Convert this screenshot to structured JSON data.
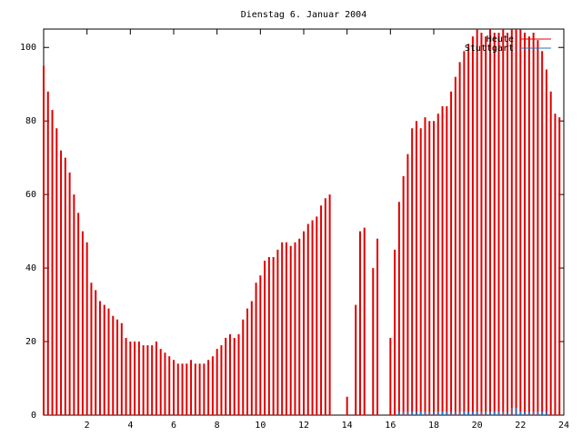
{
  "chart_data": {
    "type": "impulse",
    "title": "Dienstag 6. Januar 2004",
    "x": [
      0,
      0.2,
      0.4,
      0.6,
      0.8,
      1,
      1.2,
      1.4,
      1.6,
      1.8,
      2,
      2.2,
      2.4,
      2.6,
      2.8,
      3,
      3.2,
      3.4,
      3.6,
      3.8,
      4,
      4.2,
      4.4,
      4.6,
      4.8,
      5,
      5.2,
      5.4,
      5.6,
      5.8,
      6,
      6.2,
      6.4,
      6.6,
      6.8,
      7,
      7.2,
      7.4,
      7.6,
      7.8,
      8,
      8.2,
      8.4,
      8.6,
      8.8,
      9,
      9.2,
      9.4,
      9.6,
      9.8,
      10,
      10.2,
      10.4,
      10.6,
      10.8,
      11,
      11.2,
      11.4,
      11.6,
      11.8,
      12,
      12.2,
      12.4,
      12.6,
      12.8,
      13,
      13.2,
      13.4,
      13.6,
      13.8,
      14,
      14.2,
      14.4,
      14.6,
      14.8,
      15,
      15.2,
      15.4,
      15.6,
      15.8,
      16,
      16.2,
      16.4,
      16.6,
      16.8,
      17,
      17.2,
      17.4,
      17.6,
      17.8,
      18,
      18.2,
      18.4,
      18.6,
      18.8,
      19,
      19.2,
      19.4,
      19.6,
      19.8,
      20,
      20.2,
      20.4,
      20.6,
      20.8,
      21,
      21.2,
      21.4,
      21.6,
      21.8,
      22,
      22.2,
      22.4,
      22.6,
      22.8,
      23,
      23.2,
      23.4,
      23.6,
      23.8
    ],
    "series": [
      {
        "name": "Heute",
        "color": "#e00000",
        "values": [
          95,
          88,
          83,
          78,
          72,
          70,
          66,
          60,
          55,
          50,
          47,
          36,
          34,
          31,
          30,
          29,
          27,
          26,
          25,
          21,
          20,
          20,
          20,
          19,
          19,
          19,
          20,
          18,
          17,
          16,
          15,
          14,
          14,
          14,
          15,
          14,
          14,
          14,
          15,
          16,
          18,
          19,
          21,
          22,
          21,
          22,
          26,
          29,
          31,
          36,
          38,
          42,
          43,
          43,
          45,
          47,
          47,
          46,
          47,
          48,
          50,
          52,
          53,
          54,
          57,
          59,
          60,
          0,
          0,
          0,
          5,
          0,
          30,
          50,
          51,
          0,
          40,
          48,
          0,
          0,
          21,
          45,
          58,
          65,
          71,
          78,
          80,
          78,
          81,
          80,
          80,
          82,
          84,
          84,
          88,
          92,
          96,
          99,
          101,
          103,
          105,
          104,
          103,
          105,
          104,
          104,
          105,
          104,
          105,
          105,
          105,
          104,
          103,
          104,
          102,
          99,
          94,
          88,
          82,
          81
        ]
      },
      {
        "name": "Stuttgart",
        "color": "#1e78c8",
        "values": [
          0,
          0,
          0,
          0,
          0,
          0,
          0,
          0,
          0,
          0,
          0,
          0,
          0,
          0,
          0,
          0,
          0,
          0,
          0,
          0,
          0,
          0,
          0,
          0,
          0,
          0,
          0,
          0,
          0,
          0,
          0,
          0,
          0,
          0,
          0,
          0,
          0,
          0,
          0,
          0,
          0,
          0,
          0,
          0,
          0,
          0,
          0,
          0,
          0,
          0,
          0,
          0,
          0,
          0,
          0,
          0,
          0,
          0,
          0,
          0,
          0,
          0,
          0,
          0,
          0,
          0,
          0,
          0,
          0,
          0,
          0,
          0,
          0,
          0,
          0,
          0,
          0,
          0,
          0,
          0,
          0,
          0,
          1,
          1,
          1,
          1,
          1,
          1,
          1,
          1,
          1,
          1,
          1,
          1,
          1,
          1,
          1,
          1,
          1,
          1,
          1,
          1,
          1,
          1,
          1,
          1,
          1,
          1,
          2,
          2,
          1,
          1,
          1,
          1,
          1,
          1,
          1,
          0,
          0,
          0
        ]
      }
    ],
    "xlim": [
      0,
      24
    ],
    "xticks": [
      2,
      4,
      6,
      8,
      10,
      12,
      14,
      16,
      18,
      20,
      22,
      24
    ],
    "ylim": [
      0,
      105
    ],
    "yticks": [
      0,
      20,
      40,
      60,
      80,
      100
    ],
    "legend": "upper right"
  }
}
